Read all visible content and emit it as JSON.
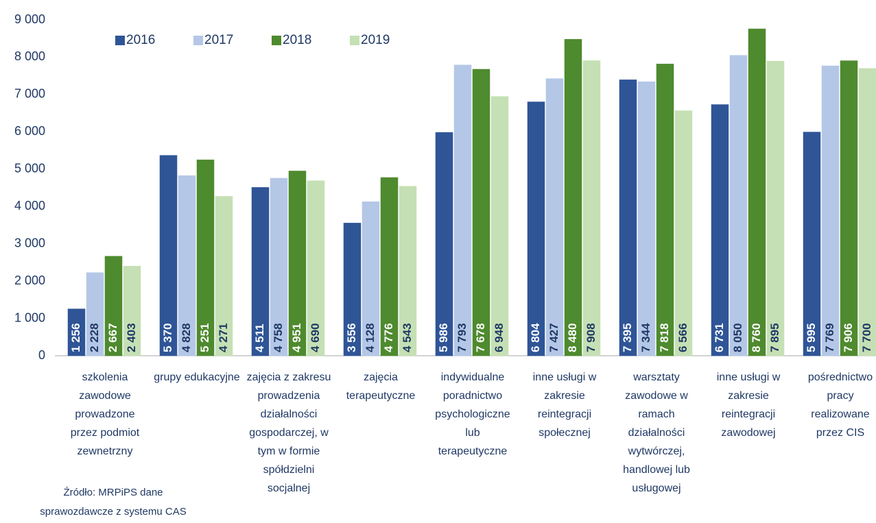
{
  "chart_data": {
    "type": "bar",
    "categories": [
      "szkolenia zawodowe prowadzone przez podmiot zewnetrzny",
      "grupy edukacyjne",
      "zajęcia z zakresu prowadzenia działalności gospodarczej, w tym w formie spółdzielni socjalnej",
      "zajęcia terapeutyczne",
      "indywidualne poradnictwo psychologiczne lub terapeutyczne",
      "inne usługi w zakresie reintegracji społecznej",
      "warsztaty zawodowe w ramach działalności wytwórczej, handlowej lub usługowej",
      "inne usługi w zakresie reintegracji zawodowej",
      "pośrednictwo pracy realizowane przez CIS"
    ],
    "series": [
      {
        "name": "2016",
        "color": "#2f5597",
        "values": [
          1256,
          5370,
          4511,
          3556,
          5986,
          6804,
          7395,
          6731,
          5995
        ],
        "value_labels": [
          "1 256",
          "5 370",
          "4 511",
          "3 556",
          "5 986",
          "6 804",
          "7 395",
          "6 731",
          "5 995"
        ]
      },
      {
        "name": "2017",
        "color": "#b4c7e7",
        "values": [
          2228,
          4828,
          4758,
          4128,
          7793,
          7427,
          7344,
          8050,
          7769
        ],
        "value_labels": [
          "2 228",
          "4 828",
          "4 758",
          "4 128",
          "7 793",
          "7 427",
          "7 344",
          "8 050",
          "7 769"
        ]
      },
      {
        "name": "2018",
        "color": "#4e8a2e",
        "values": [
          2667,
          5251,
          4951,
          4776,
          7678,
          8480,
          7818,
          8760,
          7906
        ],
        "value_labels": [
          "2 667",
          "5 251",
          "4 951",
          "4 776",
          "7 678",
          "8 480",
          "7 818",
          "8 760",
          "7 906"
        ]
      },
      {
        "name": "2019",
        "color": "#c5e0b4",
        "values": [
          2403,
          4271,
          4690,
          4543,
          6948,
          7908,
          6566,
          7895,
          7700
        ],
        "value_labels": [
          "2 403",
          "4 271",
          "4 690",
          "4 543",
          "6 948",
          "7 908",
          "6 566",
          "7 895",
          "7 700"
        ]
      }
    ],
    "ylim": [
      0,
      9000
    ],
    "yticks": [
      0,
      {
        "value": 1000,
        "label": "1 000"
      },
      {
        "value": 2000,
        "label": "2 000"
      },
      {
        "value": 3000,
        "label": "3 000"
      },
      {
        "value": 4000,
        "label": "4 000"
      },
      {
        "value": 5000,
        "label": "5 000"
      },
      {
        "value": 6000,
        "label": "6 000"
      },
      {
        "value": 7000,
        "label": "7 000"
      },
      {
        "value": 8000,
        "label": "8 000"
      },
      {
        "value": 9000,
        "label": "9 000"
      }
    ],
    "grid": false,
    "legend": "top-left",
    "annotation": "Źródło: MRPiPS  dane sprawozdawcze z systemu CAS"
  }
}
